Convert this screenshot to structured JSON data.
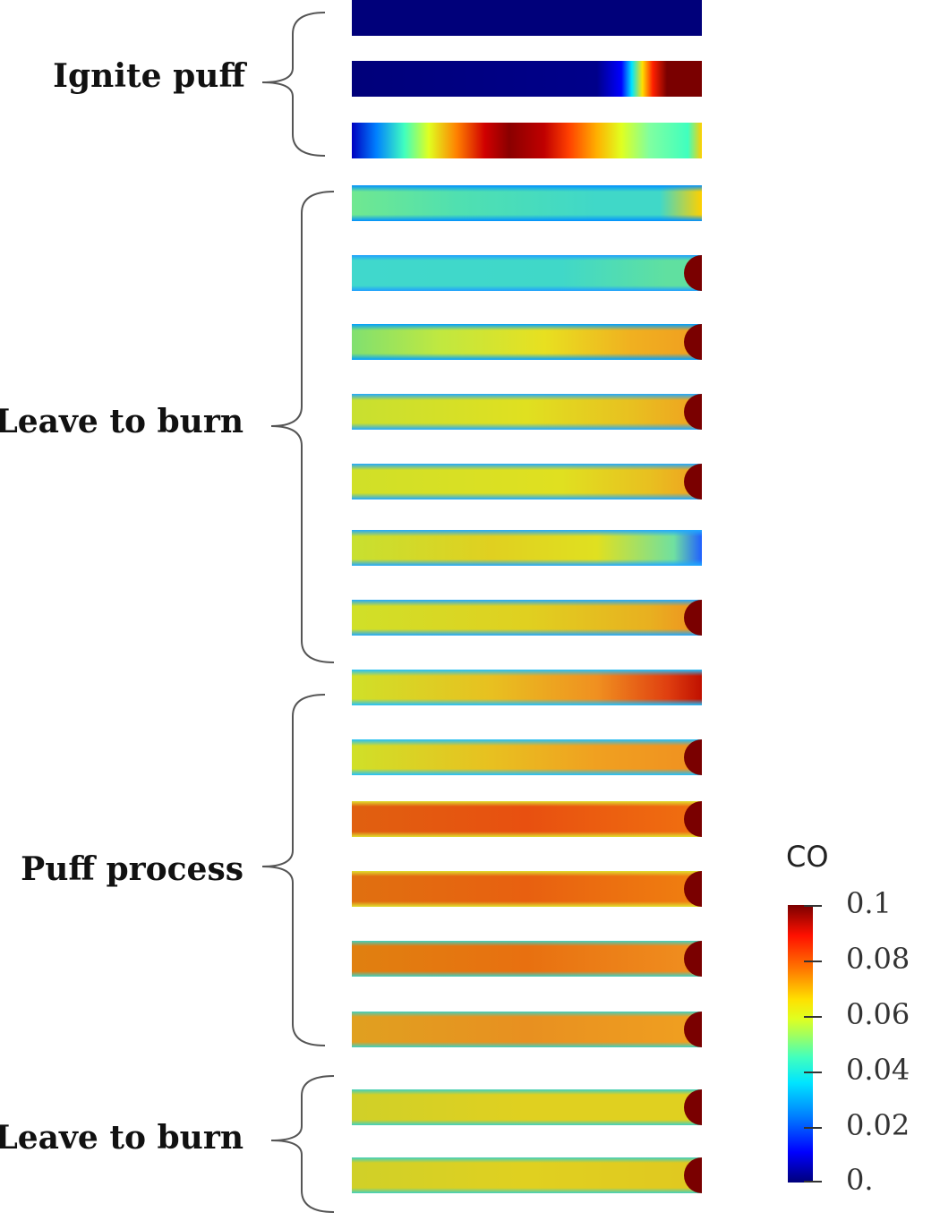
{
  "groups": [
    {
      "label": "Ignite puff"
    },
    {
      "label": "Leave to burn"
    },
    {
      "label": "Puff process"
    },
    {
      "label": "Leave to burn"
    }
  ],
  "colorbar": {
    "title": "CO",
    "ticks": [
      "0.1",
      "0.08",
      "0.06",
      "0.04",
      "0.02",
      "0."
    ],
    "range": [
      0,
      0.1
    ],
    "colormap": "jet",
    "colors": [
      "#00007a",
      "#0000ff",
      "#0080ff",
      "#00e5ff",
      "#40ffbf",
      "#a0ff60",
      "#e0ff20",
      "#ffe000",
      "#ff8000",
      "#ff1000",
      "#7a0000"
    ]
  },
  "frames": [
    {
      "state": "all-low"
    },
    {
      "state": "hot-tip"
    },
    {
      "state": "high-middle"
    },
    {
      "state": "cyan-uniform"
    },
    {
      "state": "cyan-uniform"
    },
    {
      "state": "green-yellow"
    },
    {
      "state": "yellow"
    },
    {
      "state": "yellow"
    },
    {
      "state": "yellow"
    },
    {
      "state": "yellow"
    },
    {
      "state": "yellow-orange"
    },
    {
      "state": "yellow-orange"
    },
    {
      "state": "orange"
    },
    {
      "state": "orange"
    },
    {
      "state": "orange"
    },
    {
      "state": "yellow-orange"
    },
    {
      "state": "yellow"
    },
    {
      "state": "yellow"
    }
  ]
}
